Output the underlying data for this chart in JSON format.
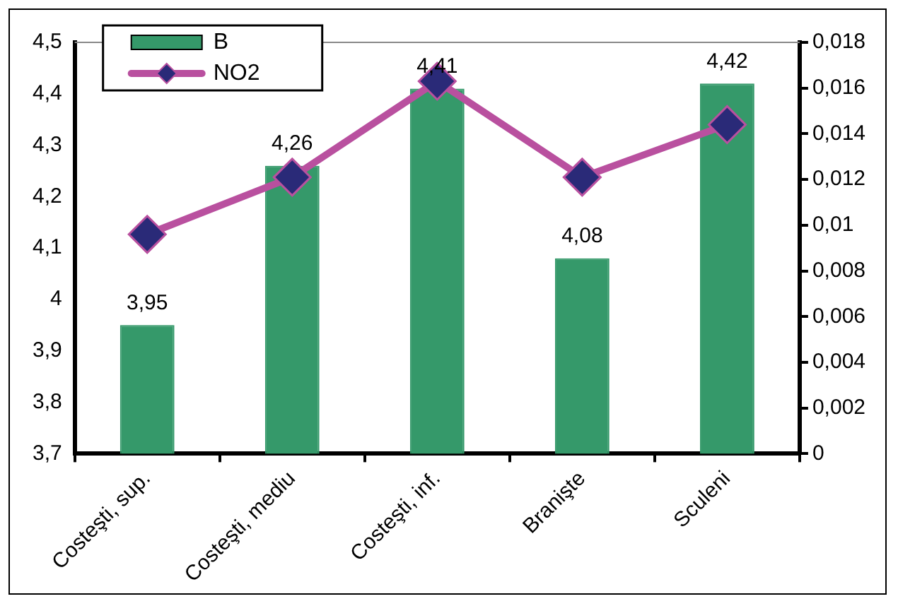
{
  "chart_data": {
    "type": "bar",
    "categories": [
      "Costeşti, sup.",
      "Costeşti, mediu",
      "Costeşti, inf.",
      "Branişte",
      "Sculeni"
    ],
    "series": [
      {
        "name": "B",
        "color": "#35996a",
        "values": [
          3.95,
          4.26,
          4.41,
          4.08,
          4.42
        ],
        "value_labels": [
          "3,95",
          "4,26",
          "4,41",
          "4,08",
          "4,42"
        ]
      },
      {
        "name": "NO2",
        "type": "line",
        "axis": "y2",
        "color": "#b9509f",
        "marker": "diamond",
        "values": [
          0.0096,
          0.0121,
          0.0163,
          0.0121,
          0.0144
        ]
      }
    ],
    "ylim": [
      3.7,
      4.5
    ],
    "yticks": [
      {
        "value": 3.7,
        "label": "3,7"
      },
      {
        "value": 3.8,
        "label": "3,8"
      },
      {
        "value": 3.9,
        "label": "3,9"
      },
      {
        "value": 4,
        "label": "4"
      },
      {
        "value": 4.1,
        "label": "4,1"
      },
      {
        "value": 4.2,
        "label": "4,2"
      },
      {
        "value": 4.3,
        "label": "4,3"
      },
      {
        "value": 4.4,
        "label": "4,4"
      },
      {
        "value": 4.5,
        "label": "4,5"
      }
    ],
    "y2lim": [
      0,
      0.018
    ],
    "y2ticks": [
      0,
      {
        "value": 0.002,
        "label": "0,002"
      },
      {
        "value": 0.004,
        "label": "0,004"
      },
      {
        "value": 0.006,
        "label": "0,006"
      },
      {
        "value": 0.008,
        "label": "0,008"
      },
      {
        "value": 0.01,
        "label": "0,01"
      },
      {
        "value": 0.012,
        "label": "0,012"
      },
      {
        "value": 0.014,
        "label": "0,014"
      },
      {
        "value": 0.016,
        "label": "0,016"
      },
      {
        "value": 0.018,
        "label": "0,018"
      }
    ],
    "legend": "top left"
  }
}
